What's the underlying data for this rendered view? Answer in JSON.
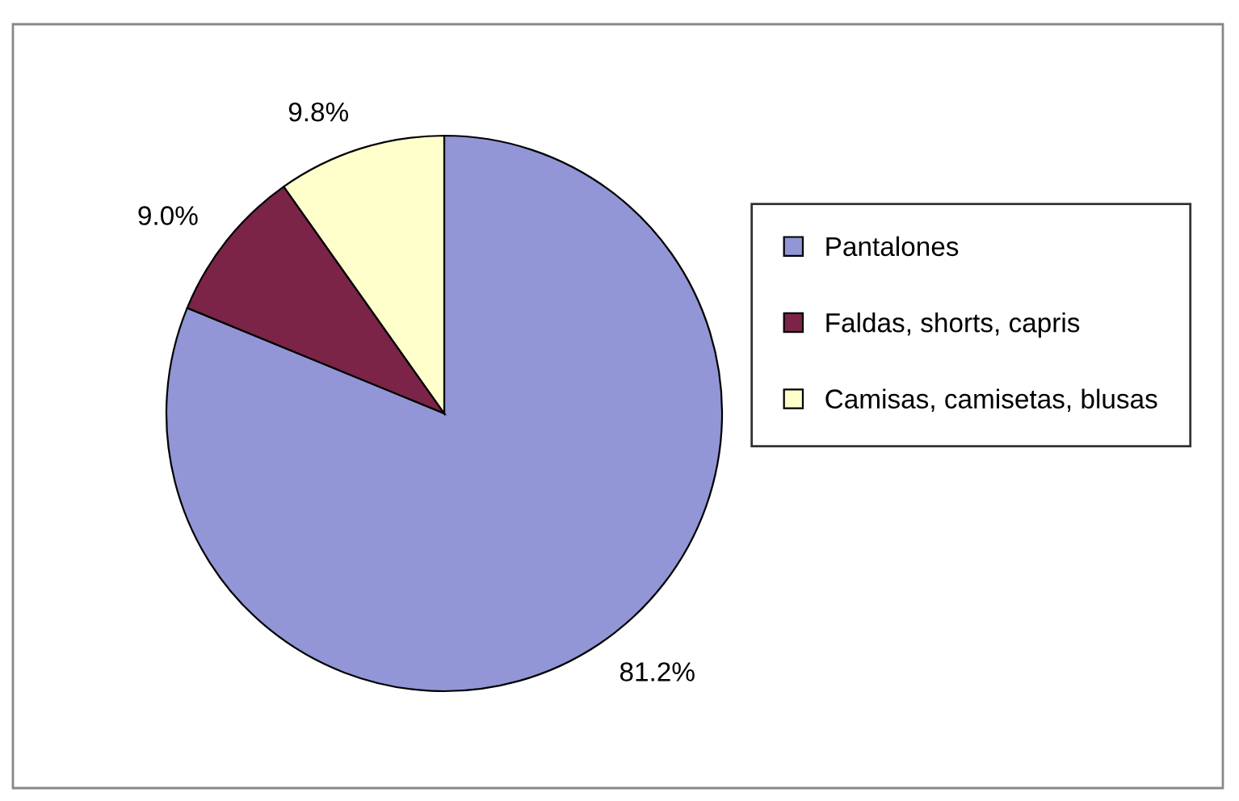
{
  "chart_data": {
    "type": "pie",
    "categories": [
      "Pantalones",
      "Faldas, shorts, capris",
      "Camisas, camisetas, blusas"
    ],
    "values": [
      81.2,
      9.0,
      9.8
    ],
    "colors": [
      "#9296d6",
      "#7b2448",
      "#ffffcc"
    ],
    "value_labels": [
      "81.2%",
      "9.0%",
      "9.8%"
    ],
    "legend": "right"
  }
}
